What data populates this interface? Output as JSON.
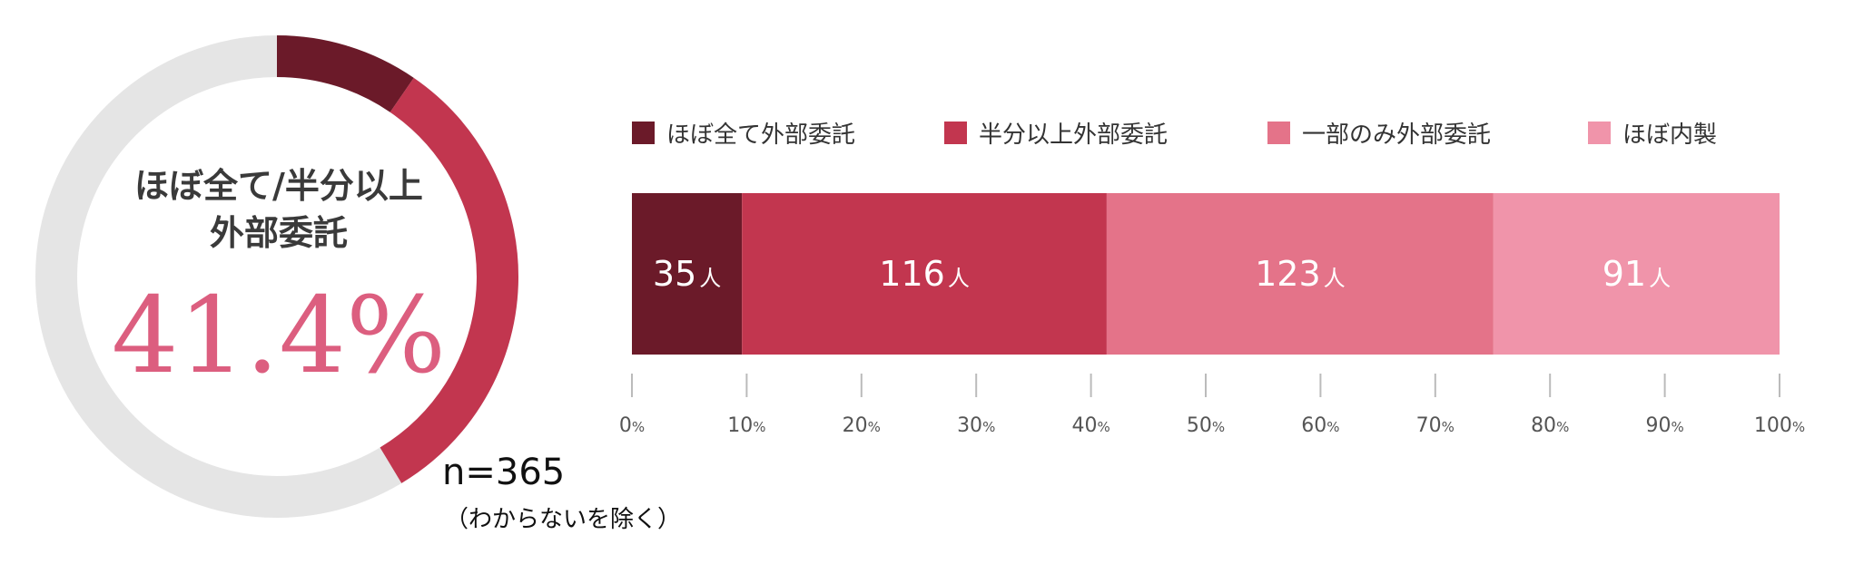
{
  "colors": {
    "almost_all": "#6b1a29",
    "half_or_more": "#c2364f",
    "partial": "#e47389",
    "in_house": "#f094aa",
    "donut_bg": "#e5e5e5",
    "highlight_pct": "#dc5e7f",
    "axis": "#bbbbbb"
  },
  "donut": {
    "title_line1": "ほぼ全て/半分以上",
    "title_line2": "外部委託",
    "percent": "41.4%"
  },
  "sample": {
    "n": "n=365",
    "note": "（わからないを除く）"
  },
  "chart_data": {
    "type": "bar",
    "orientation": "horizontal-stacked",
    "unit": "人",
    "total": 365,
    "series": [
      {
        "name": "ほぼ全て外部委託",
        "value": 35,
        "label": "35"
      },
      {
        "name": "半分以上外部委託",
        "value": 116,
        "label": "116"
      },
      {
        "name": "一部のみ外部委託",
        "value": 123,
        "label": "123"
      },
      {
        "name": "ほぼ内製",
        "value": 91,
        "label": "91"
      }
    ],
    "xticks": [
      "0",
      "10",
      "20",
      "30",
      "40",
      "50",
      "60",
      "70",
      "80",
      "90",
      "100"
    ],
    "tick_suffix": "%",
    "xlim": [
      0,
      100
    ],
    "legend_position": "top"
  }
}
